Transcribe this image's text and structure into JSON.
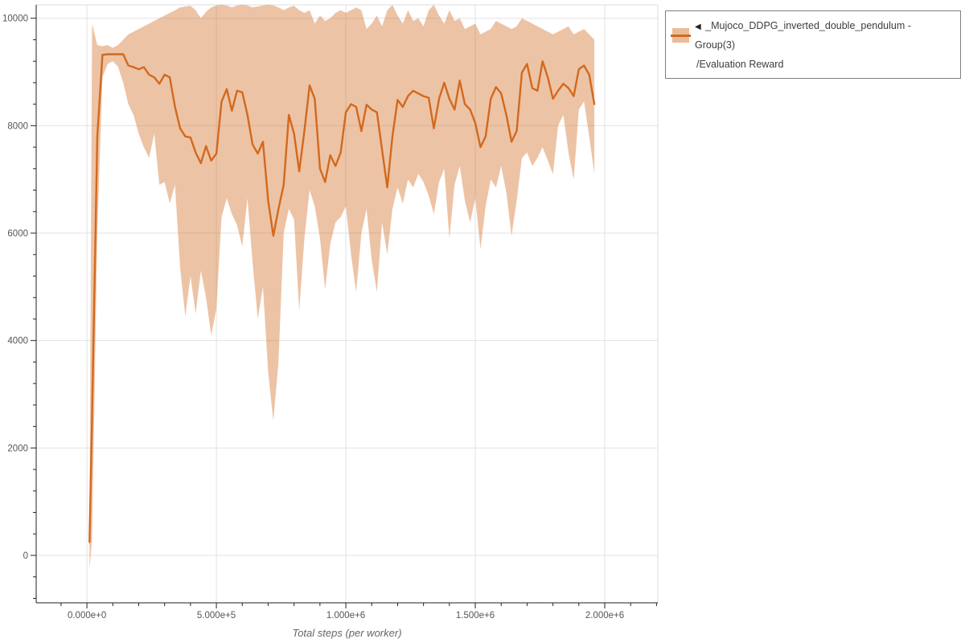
{
  "page": {
    "background": "#ffffff"
  },
  "legend": {
    "marker_glyph": "◀",
    "label_line1": "_Mujoco_DDPG_inverted_double_pendulum - Group(3)",
    "label_line2": "/Evaluation Reward",
    "swatch_band_color": "rgba(210,105,30,0.45)",
    "swatch_line_color": "#d2691e",
    "border_color": "#7f7f7f",
    "text_color": "#3d3d3d"
  },
  "chart_data": {
    "type": "line",
    "title": "",
    "xlabel": "Total steps (per worker)",
    "ylabel": "",
    "grid": true,
    "legend_position": "top-right",
    "xlim": [
      -196000,
      2205000
    ],
    "ylim": [
      -883,
      10250
    ],
    "x_ticks": {
      "values": [
        0,
        500000,
        1000000,
        1500000,
        2000000
      ],
      "labels": [
        "0.000e+0",
        "5.000e+5",
        "1.000e+6",
        "1.500e+6",
        "2.000e+6"
      ],
      "minor_step": 100000
    },
    "y_ticks": {
      "values": [
        0,
        2000,
        4000,
        6000,
        8000,
        10000
      ],
      "labels": [
        "0",
        "2000",
        "4000",
        "6000",
        "8000",
        "10000"
      ],
      "minor_step": 400
    },
    "colors": {
      "line": "#d2691e",
      "band": "rgba(210,105,30,0.4)",
      "grid": "#e2e2e2",
      "plot_border": "#dddddd",
      "axis": "#222222",
      "tick_label": "#555555",
      "axis_title": "#666666"
    },
    "series": [
      {
        "name": "_Mujoco_DDPG_inverted_double_pendulum - Group(3) /Evaluation Reward",
        "x": [
          10000,
          20000,
          40000,
          60000,
          80000,
          100000,
          120000,
          140000,
          160000,
          180000,
          200000,
          220000,
          240000,
          260000,
          280000,
          300000,
          320000,
          340000,
          360000,
          380000,
          400000,
          420000,
          440000,
          460000,
          480000,
          500000,
          520000,
          540000,
          560000,
          580000,
          600000,
          620000,
          640000,
          660000,
          680000,
          700000,
          720000,
          740000,
          760000,
          780000,
          800000,
          820000,
          840000,
          860000,
          880000,
          900000,
          920000,
          940000,
          960000,
          980000,
          1000000,
          1020000,
          1040000,
          1060000,
          1080000,
          1100000,
          1120000,
          1140000,
          1160000,
          1180000,
          1200000,
          1220000,
          1240000,
          1260000,
          1280000,
          1300000,
          1320000,
          1340000,
          1360000,
          1380000,
          1400000,
          1420000,
          1440000,
          1460000,
          1480000,
          1500000,
          1520000,
          1540000,
          1560000,
          1580000,
          1600000,
          1620000,
          1640000,
          1660000,
          1680000,
          1700000,
          1720000,
          1740000,
          1760000,
          1780000,
          1800000,
          1820000,
          1840000,
          1860000,
          1880000,
          1900000,
          1920000,
          1940000,
          1960000
        ],
        "mean": [
          250,
          2600,
          7800,
          9320,
          9330,
          9330,
          9330,
          9330,
          9120,
          9090,
          9050,
          9090,
          8950,
          8900,
          8780,
          8950,
          8900,
          8350,
          7950,
          7800,
          7780,
          7500,
          7300,
          7620,
          7350,
          7480,
          8450,
          8680,
          8280,
          8650,
          8620,
          8200,
          7650,
          7480,
          7700,
          6600,
          5950,
          6450,
          6900,
          8200,
          7850,
          7150,
          7900,
          8750,
          8500,
          7200,
          6950,
          7450,
          7250,
          7500,
          8250,
          8400,
          8350,
          7900,
          8390,
          8300,
          8250,
          7550,
          6850,
          7800,
          8480,
          8350,
          8550,
          8650,
          8600,
          8550,
          8520,
          7950,
          8500,
          8800,
          8500,
          8300,
          8840,
          8400,
          8300,
          8050,
          7600,
          7800,
          8500,
          8720,
          8600,
          8200,
          7700,
          7900,
          8990,
          9150,
          8700,
          8650,
          9200,
          8900,
          8500,
          8650,
          8780,
          8700,
          8550,
          9050,
          9120,
          8950,
          8400
        ],
        "band_lower": [
          -250,
          300,
          6000,
          8900,
          9150,
          9200,
          9100,
          8800,
          8400,
          8200,
          7850,
          7600,
          7400,
          7850,
          6900,
          6950,
          6550,
          6900,
          5350,
          4450,
          5200,
          4500,
          5300,
          4800,
          4100,
          4600,
          6300,
          6650,
          6350,
          6150,
          5750,
          6650,
          5450,
          4400,
          5000,
          3400,
          2500,
          3600,
          6000,
          6450,
          6250,
          4550,
          5900,
          6800,
          6500,
          5900,
          4950,
          5800,
          6200,
          6300,
          6500,
          5600,
          4900,
          6000,
          6450,
          5500,
          4900,
          6200,
          5600,
          6450,
          6850,
          6550,
          7000,
          6850,
          7100,
          6950,
          6700,
          6350,
          6950,
          7200,
          5900,
          6900,
          7250,
          6600,
          6200,
          6650,
          5700,
          6500,
          7000,
          6850,
          7250,
          6750,
          5950,
          6600,
          7400,
          7500,
          7250,
          7400,
          7600,
          7350,
          7100,
          8000,
          8200,
          7500,
          7000,
          8300,
          8450,
          7800,
          7100
        ],
        "band_upper": [
          700,
          9900,
          9500,
          9480,
          9500,
          9450,
          9500,
          9600,
          9700,
          9750,
          9800,
          9850,
          9900,
          9950,
          10000,
          10050,
          10100,
          10150,
          10200,
          10220,
          10230,
          10150,
          10000,
          10120,
          10200,
          10240,
          10250,
          10240,
          10200,
          10240,
          10250,
          10240,
          10200,
          10220,
          10240,
          10250,
          10240,
          10200,
          10150,
          10200,
          10230,
          10150,
          10100,
          10150,
          9900,
          10050,
          9950,
          10000,
          10100,
          10150,
          10100,
          10150,
          10200,
          10150,
          9800,
          9900,
          10050,
          9850,
          10150,
          10250,
          10050,
          9900,
          10150,
          9950,
          10000,
          9850,
          10150,
          10250,
          10050,
          9900,
          10150,
          9950,
          10000,
          9800,
          9850,
          9900,
          9700,
          9750,
          9800,
          9950,
          9900,
          9850,
          9800,
          9850,
          10000,
          9950,
          9900,
          9850,
          9800,
          9750,
          9700,
          9750,
          9800,
          9850,
          9700,
          9750,
          9800,
          9700,
          9600
        ]
      }
    ]
  }
}
